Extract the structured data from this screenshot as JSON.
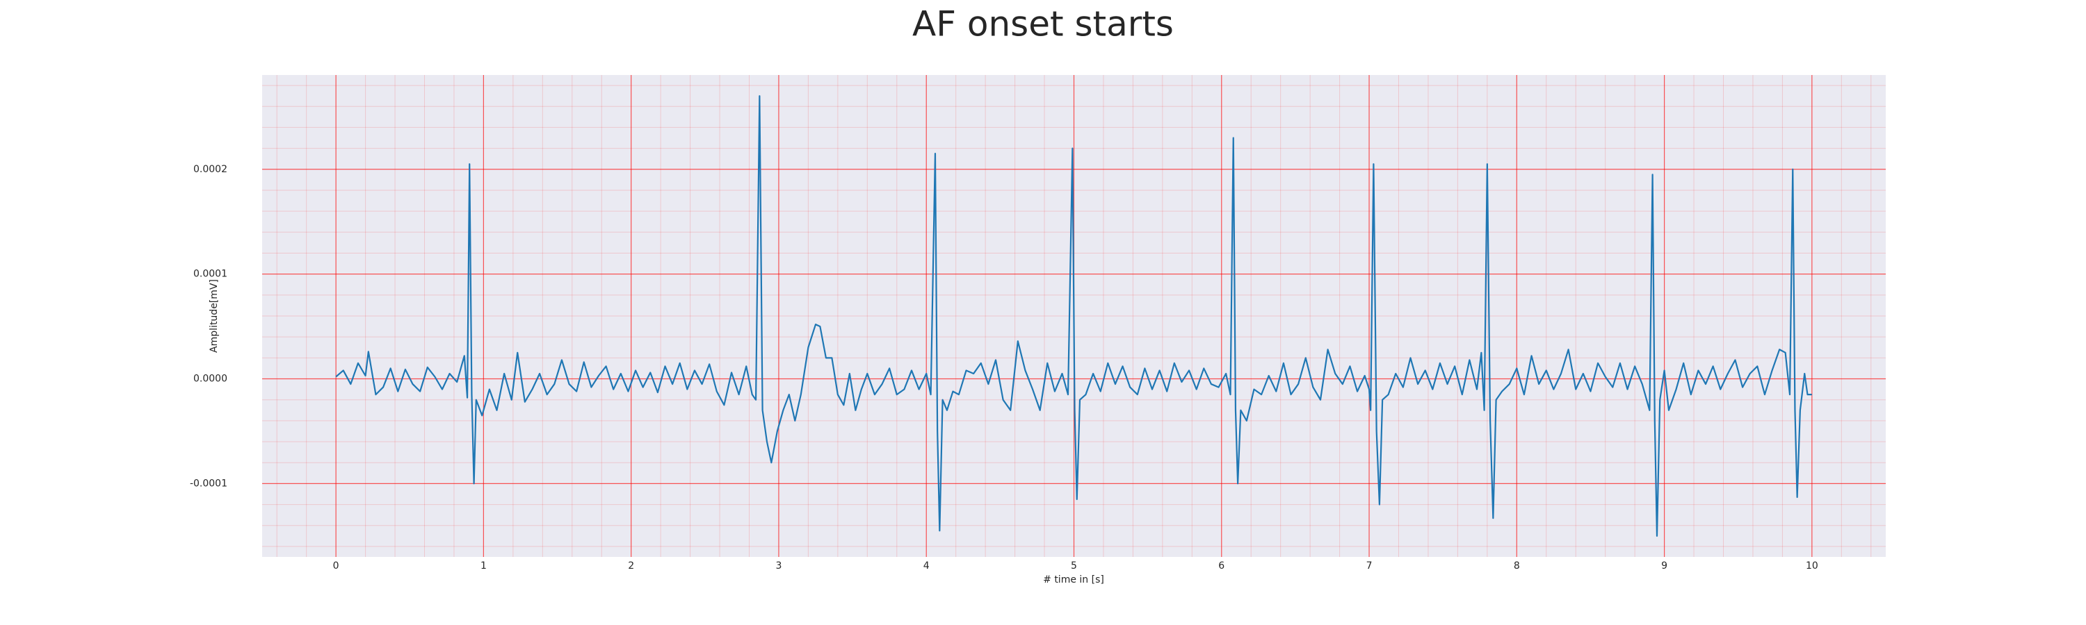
{
  "chart_data": {
    "type": "line",
    "title": "AF onset starts",
    "x_label": "# time in [s]",
    "y_label": "Amplitude[mV]",
    "x": [
      0,
      0.05,
      0.1,
      0.15,
      0.2,
      0.22,
      0.27,
      0.32,
      0.37,
      0.42,
      0.47,
      0.52,
      0.57,
      0.62,
      0.67,
      0.72,
      0.77,
      0.82,
      0.87,
      0.89,
      0.905,
      0.92,
      0.935,
      0.95,
      0.99,
      1.04,
      1.09,
      1.14,
      1.19,
      1.23,
      1.28,
      1.33,
      1.38,
      1.43,
      1.48,
      1.53,
      1.58,
      1.63,
      1.68,
      1.73,
      1.78,
      1.83,
      1.88,
      1.93,
      1.98,
      2.03,
      2.08,
      2.13,
      2.18,
      2.23,
      2.28,
      2.33,
      2.38,
      2.43,
      2.48,
      2.53,
      2.58,
      2.63,
      2.68,
      2.73,
      2.78,
      2.82,
      2.845,
      2.87,
      2.89,
      2.92,
      2.95,
      2.99,
      3.03,
      3.07,
      3.11,
      3.15,
      3.2,
      3.25,
      3.28,
      3.32,
      3.36,
      3.4,
      3.44,
      3.48,
      3.52,
      3.56,
      3.6,
      3.65,
      3.7,
      3.75,
      3.8,
      3.85,
      3.9,
      3.95,
      4.0,
      4.03,
      4.06,
      4.075,
      4.09,
      4.11,
      4.14,
      4.18,
      4.22,
      4.27,
      4.32,
      4.37,
      4.42,
      4.47,
      4.52,
      4.57,
      4.62,
      4.67,
      4.72,
      4.77,
      4.82,
      4.87,
      4.92,
      4.96,
      4.99,
      5.005,
      5.02,
      5.04,
      5.08,
      5.13,
      5.18,
      5.23,
      5.28,
      5.33,
      5.38,
      5.43,
      5.48,
      5.53,
      5.58,
      5.63,
      5.68,
      5.73,
      5.78,
      5.83,
      5.88,
      5.93,
      5.98,
      6.03,
      6.06,
      6.08,
      6.095,
      6.11,
      6.13,
      6.17,
      6.22,
      6.27,
      6.32,
      6.37,
      6.42,
      6.47,
      6.52,
      6.57,
      6.62,
      6.67,
      6.72,
      6.77,
      6.82,
      6.87,
      6.92,
      6.97,
      7.0,
      7.01,
      7.03,
      7.05,
      7.07,
      7.09,
      7.13,
      7.18,
      7.23,
      7.28,
      7.33,
      7.38,
      7.43,
      7.48,
      7.53,
      7.58,
      7.63,
      7.68,
      7.73,
      7.76,
      7.78,
      7.8,
      7.82,
      7.84,
      7.86,
      7.9,
      7.95,
      8.0,
      8.05,
      8.1,
      8.15,
      8.2,
      8.25,
      8.3,
      8.35,
      8.4,
      8.45,
      8.5,
      8.55,
      8.6,
      8.65,
      8.7,
      8.75,
      8.8,
      8.85,
      8.9,
      8.92,
      8.935,
      8.95,
      8.97,
      9.0,
      9.03,
      9.08,
      9.13,
      9.18,
      9.23,
      9.28,
      9.33,
      9.38,
      9.43,
      9.48,
      9.53,
      9.58,
      9.63,
      9.68,
      9.73,
      9.78,
      9.82,
      9.85,
      9.87,
      9.885,
      9.9,
      9.92,
      9.95,
      9.97,
      10.0
    ],
    "series": [
      {
        "color": "#1f77b4",
        "values": [
          2e-06,
          8e-06,
          -5e-06,
          1.5e-05,
          3e-06,
          2.6e-05,
          -1.5e-05,
          -8e-06,
          1e-05,
          -1.2e-05,
          9e-06,
          -5e-06,
          -1.2e-05,
          1.1e-05,
          2e-06,
          -1e-05,
          5e-06,
          -3e-06,
          2.2e-05,
          -1.8e-05,
          0.000205,
          -1.5e-05,
          -0.0001,
          -2e-05,
          -3.5e-05,
          -1e-05,
          -3e-05,
          5e-06,
          -2e-05,
          2.5e-05,
          -2.2e-05,
          -1e-05,
          5e-06,
          -1.5e-05,
          -5e-06,
          1.8e-05,
          -5e-06,
          -1.2e-05,
          1.6e-05,
          -8e-06,
          3e-06,
          1.2e-05,
          -1e-05,
          5e-06,
          -1.2e-05,
          8e-06,
          -8e-06,
          6e-06,
          -1.3e-05,
          1.2e-05,
          -5e-06,
          1.5e-05,
          -1e-05,
          8e-06,
          -5e-06,
          1.4e-05,
          -1.2e-05,
          -2.5e-05,
          6e-06,
          -1.5e-05,
          1.2e-05,
          -1.5e-05,
          -2e-05,
          0.00027,
          -3e-05,
          -6e-05,
          -8e-05,
          -5e-05,
          -3e-05,
          -1.5e-05,
          -4e-05,
          -1.5e-05,
          3e-05,
          5.2e-05,
          5e-05,
          2e-05,
          2e-05,
          -1.5e-05,
          -2.5e-05,
          5e-06,
          -3e-05,
          -1e-05,
          5e-06,
          -1.5e-05,
          -5e-06,
          1e-05,
          -1.5e-05,
          -1e-05,
          8e-06,
          -1e-05,
          5e-06,
          -1.5e-05,
          0.000215,
          -5e-05,
          -0.000145,
          -2e-05,
          -3e-05,
          -1.2e-05,
          -1.5e-05,
          8e-06,
          5e-06,
          1.5e-05,
          -5e-06,
          1.8e-05,
          -2e-05,
          -3e-05,
          3.6e-05,
          8e-06,
          -1e-05,
          -3e-05,
          1.5e-05,
          -1.2e-05,
          5e-06,
          -1.5e-05,
          0.00022,
          -3e-05,
          -0.000115,
          -2e-05,
          -1.5e-05,
          5e-06,
          -1.2e-05,
          1.5e-05,
          -5e-06,
          1.2e-05,
          -8e-06,
          -1.5e-05,
          1e-05,
          -1e-05,
          8e-06,
          -1.2e-05,
          1.5e-05,
          -3e-06,
          8e-06,
          -1e-05,
          1e-05,
          -5e-06,
          -8e-06,
          5e-06,
          -1.5e-05,
          0.00023,
          -3e-05,
          -0.0001,
          -3e-05,
          -4e-05,
          -1e-05,
          -1.5e-05,
          3e-06,
          -1.2e-05,
          1.5e-05,
          -1.5e-05,
          -5e-06,
          2e-05,
          -8e-06,
          -2e-05,
          2.8e-05,
          5e-06,
          -5e-06,
          1.2e-05,
          -1.2e-05,
          3e-06,
          -1e-05,
          -3e-05,
          0.000205,
          -5e-05,
          -0.00012,
          -2e-05,
          -1.5e-05,
          5e-06,
          -8e-06,
          2e-05,
          -5e-06,
          8e-06,
          -1e-05,
          1.5e-05,
          -5e-06,
          1.2e-05,
          -1.5e-05,
          1.8e-05,
          -1e-05,
          2.5e-05,
          -3e-05,
          0.000205,
          -4e-05,
          -0.000133,
          -2e-05,
          -1.2e-05,
          -5e-06,
          1e-05,
          -1.5e-05,
          2.2e-05,
          -5e-06,
          8e-06,
          -1e-05,
          5e-06,
          2.8e-05,
          -1e-05,
          5e-06,
          -1.2e-05,
          1.5e-05,
          2e-06,
          -8e-06,
          1.5e-05,
          -1e-05,
          1.2e-05,
          -5e-06,
          -3e-05,
          0.000195,
          -4e-05,
          -0.00015,
          -2e-05,
          8e-06,
          -3e-05,
          -1e-05,
          1.5e-05,
          -1.5e-05,
          8e-06,
          -5e-06,
          1.2e-05,
          -1e-05,
          5e-06,
          1.8e-05,
          -8e-06,
          5e-06,
          1.2e-05,
          -1.5e-05,
          8e-06,
          2.8e-05,
          2.5e-05,
          -1.5e-05,
          0.0002,
          -3e-05,
          -0.000113,
          -3e-05,
          5e-06,
          -1.5e-05,
          -1.5e-05
        ]
      }
    ],
    "xlim": [
      -0.5,
      10.5
    ],
    "xticks": [
      0,
      1,
      2,
      3,
      4,
      5,
      6,
      7,
      8,
      9,
      10
    ],
    "ylim": [
      -0.00017,
      0.00029
    ],
    "yticks": [
      {
        "value": -0.0001,
        "label": "-0.0001"
      },
      {
        "value": 0,
        "label": "0.0000"
      },
      {
        "value": 0.0001,
        "label": "0.0001"
      },
      {
        "value": 0.0002,
        "label": "0.0002"
      }
    ],
    "grid": true,
    "grid_color": "#ff0000",
    "minor_grid": true,
    "background": "#eaeaf2"
  }
}
